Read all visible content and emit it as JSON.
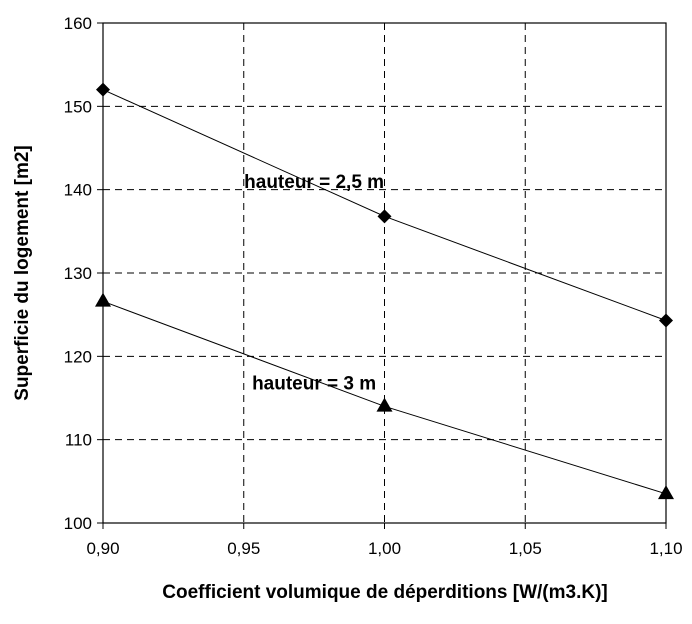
{
  "chart_data": {
    "type": "line",
    "xlabel": "Coefficient volumique de déperditions [W/(m3.K)]",
    "ylabel": "Superficie du logement [m2]",
    "xlim": [
      0.9,
      1.1
    ],
    "ylim": [
      100,
      160
    ],
    "x_ticks": [
      "0,90",
      "0,95",
      "1,00",
      "1,05",
      "1,10"
    ],
    "y_ticks": [
      "100",
      "110",
      "120",
      "130",
      "140",
      "150",
      "160"
    ],
    "grid": true,
    "x": [
      0.9,
      1.0,
      1.1
    ],
    "series": [
      {
        "name": "hauteur = 2,5 m",
        "marker": "diamond",
        "values": [
          152.0,
          136.8,
          124.3
        ]
      },
      {
        "name": "hauteur = 3 m",
        "marker": "triangle",
        "values": [
          126.6,
          114.0,
          103.5
        ]
      }
    ]
  }
}
